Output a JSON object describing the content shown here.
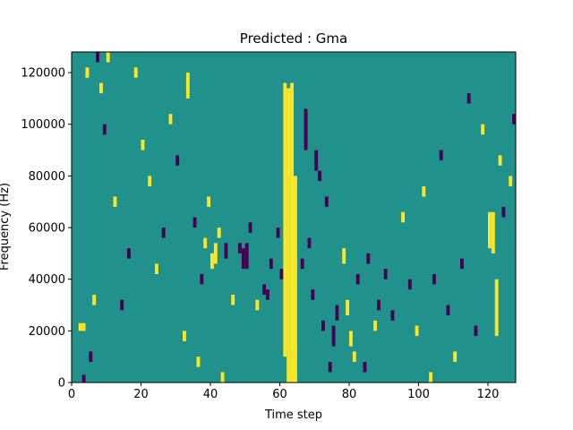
{
  "chart_data": {
    "type": "heatmap",
    "title": "Predicted : Gma",
    "xlabel": "Time step",
    "ylabel": "Frequency (Hz)",
    "xlim": [
      0,
      128
    ],
    "ylim": [
      0,
      128000
    ],
    "xticks": [
      0,
      20,
      40,
      60,
      80,
      100,
      120
    ],
    "yticks": [
      0,
      20000,
      40000,
      60000,
      80000,
      100000,
      120000
    ],
    "ytick_labels": [
      "0",
      "20000",
      "40000",
      "60000",
      "80000",
      "100000",
      "120000"
    ],
    "grid": false,
    "legend": "none",
    "n_time_steps": 128,
    "n_freq_bins": 128,
    "value_levels": [
      -1,
      0,
      1
    ],
    "colormap": {
      "-1": "#440154",
      "0": "#21918c",
      "1": "#fde725"
    },
    "background_value": 0,
    "cells": [
      {
        "t": 2,
        "f0": 20000,
        "f1": 23000,
        "v": 1
      },
      {
        "t": 3,
        "f0": 20000,
        "f1": 23000,
        "v": 1
      },
      {
        "t": 3,
        "f0": 0,
        "f1": 3000,
        "v": -1
      },
      {
        "t": 4,
        "f0": 118000,
        "f1": 122000,
        "v": 1
      },
      {
        "t": 5,
        "f0": 8000,
        "f1": 12000,
        "v": -1
      },
      {
        "t": 6,
        "f0": 30000,
        "f1": 34000,
        "v": 1
      },
      {
        "t": 7,
        "f0": 124000,
        "f1": 128000,
        "v": -1
      },
      {
        "t": 8,
        "f0": 112000,
        "f1": 116000,
        "v": 1
      },
      {
        "t": 9,
        "f0": 96000,
        "f1": 100000,
        "v": -1
      },
      {
        "t": 10,
        "f0": 124000,
        "f1": 128000,
        "v": 1
      },
      {
        "t": 12,
        "f0": 68000,
        "f1": 72000,
        "v": 1
      },
      {
        "t": 14,
        "f0": 28000,
        "f1": 32000,
        "v": -1
      },
      {
        "t": 16,
        "f0": 48000,
        "f1": 52000,
        "v": -1
      },
      {
        "t": 18,
        "f0": 118000,
        "f1": 122000,
        "v": 1
      },
      {
        "t": 20,
        "f0": 90000,
        "f1": 94000,
        "v": 1
      },
      {
        "t": 22,
        "f0": 76000,
        "f1": 80000,
        "v": 1
      },
      {
        "t": 24,
        "f0": 42000,
        "f1": 46000,
        "v": 1
      },
      {
        "t": 26,
        "f0": 56000,
        "f1": 60000,
        "v": -1
      },
      {
        "t": 28,
        "f0": 100000,
        "f1": 104000,
        "v": 1
      },
      {
        "t": 30,
        "f0": 84000,
        "f1": 88000,
        "v": -1
      },
      {
        "t": 32,
        "f0": 16000,
        "f1": 20000,
        "v": 1
      },
      {
        "t": 33,
        "f0": 110000,
        "f1": 120000,
        "v": 1
      },
      {
        "t": 35,
        "f0": 60000,
        "f1": 64000,
        "v": -1
      },
      {
        "t": 36,
        "f0": 6000,
        "f1": 10000,
        "v": 1
      },
      {
        "t": 37,
        "f0": 38000,
        "f1": 42000,
        "v": -1
      },
      {
        "t": 38,
        "f0": 52000,
        "f1": 56000,
        "v": 1
      },
      {
        "t": 39,
        "f0": 68000,
        "f1": 72000,
        "v": 1
      },
      {
        "t": 40,
        "f0": 44000,
        "f1": 50000,
        "v": 1
      },
      {
        "t": 41,
        "f0": 46000,
        "f1": 54000,
        "v": 1
      },
      {
        "t": 42,
        "f0": 56000,
        "f1": 60000,
        "v": 1
      },
      {
        "t": 43,
        "f0": 0,
        "f1": 4000,
        "v": 1
      },
      {
        "t": 44,
        "f0": 48000,
        "f1": 54000,
        "v": -1
      },
      {
        "t": 46,
        "f0": 30000,
        "f1": 34000,
        "v": 1
      },
      {
        "t": 48,
        "f0": 50000,
        "f1": 54000,
        "v": -1
      },
      {
        "t": 49,
        "f0": 44000,
        "f1": 52000,
        "v": -1
      },
      {
        "t": 50,
        "f0": 44000,
        "f1": 54000,
        "v": -1
      },
      {
        "t": 51,
        "f0": 58000,
        "f1": 62000,
        "v": -1
      },
      {
        "t": 53,
        "f0": 28000,
        "f1": 32000,
        "v": 1
      },
      {
        "t": 55,
        "f0": 34000,
        "f1": 38000,
        "v": -1
      },
      {
        "t": 56,
        "f0": 32000,
        "f1": 36000,
        "v": -1
      },
      {
        "t": 57,
        "f0": 44000,
        "f1": 48000,
        "v": -1
      },
      {
        "t": 59,
        "f0": 56000,
        "f1": 60000,
        "v": -1
      },
      {
        "t": 60,
        "f0": 40000,
        "f1": 44000,
        "v": -1
      },
      {
        "t": 61,
        "f0": 10000,
        "f1": 116000,
        "v": 1
      },
      {
        "t": 62,
        "f0": 0,
        "f1": 114000,
        "v": 1
      },
      {
        "t": 63,
        "f0": 0,
        "f1": 116000,
        "v": 1
      },
      {
        "t": 64,
        "f0": 0,
        "f1": 80000,
        "v": 1
      },
      {
        "t": 66,
        "f0": 44000,
        "f1": 48000,
        "v": -1
      },
      {
        "t": 67,
        "f0": 90000,
        "f1": 106000,
        "v": -1
      },
      {
        "t": 68,
        "f0": 52000,
        "f1": 56000,
        "v": -1
      },
      {
        "t": 69,
        "f0": 32000,
        "f1": 36000,
        "v": -1
      },
      {
        "t": 70,
        "f0": 82000,
        "f1": 90000,
        "v": -1
      },
      {
        "t": 71,
        "f0": 78000,
        "f1": 82000,
        "v": -1
      },
      {
        "t": 72,
        "f0": 20000,
        "f1": 24000,
        "v": -1
      },
      {
        "t": 73,
        "f0": 68000,
        "f1": 72000,
        "v": -1
      },
      {
        "t": 74,
        "f0": 4000,
        "f1": 8000,
        "v": -1
      },
      {
        "t": 75,
        "f0": 14000,
        "f1": 22000,
        "v": -1
      },
      {
        "t": 76,
        "f0": 24000,
        "f1": 30000,
        "v": -1
      },
      {
        "t": 78,
        "f0": 46000,
        "f1": 52000,
        "v": 1
      },
      {
        "t": 79,
        "f0": 26000,
        "f1": 32000,
        "v": 1
      },
      {
        "t": 80,
        "f0": 14000,
        "f1": 20000,
        "v": 1
      },
      {
        "t": 81,
        "f0": 8000,
        "f1": 12000,
        "v": 1
      },
      {
        "t": 82,
        "f0": 38000,
        "f1": 42000,
        "v": -1
      },
      {
        "t": 84,
        "f0": 4000,
        "f1": 8000,
        "v": -1
      },
      {
        "t": 85,
        "f0": 46000,
        "f1": 50000,
        "v": -1
      },
      {
        "t": 87,
        "f0": 20000,
        "f1": 24000,
        "v": 1
      },
      {
        "t": 88,
        "f0": 28000,
        "f1": 32000,
        "v": -1
      },
      {
        "t": 90,
        "f0": 40000,
        "f1": 44000,
        "v": -1
      },
      {
        "t": 92,
        "f0": 24000,
        "f1": 28000,
        "v": -1
      },
      {
        "t": 95,
        "f0": 62000,
        "f1": 66000,
        "v": 1
      },
      {
        "t": 97,
        "f0": 36000,
        "f1": 40000,
        "v": -1
      },
      {
        "t": 99,
        "f0": 18000,
        "f1": 22000,
        "v": 1
      },
      {
        "t": 101,
        "f0": 72000,
        "f1": 76000,
        "v": 1
      },
      {
        "t": 103,
        "f0": 0,
        "f1": 4000,
        "v": 1
      },
      {
        "t": 104,
        "f0": 38000,
        "f1": 42000,
        "v": -1
      },
      {
        "t": 106,
        "f0": 86000,
        "f1": 90000,
        "v": -1
      },
      {
        "t": 108,
        "f0": 26000,
        "f1": 30000,
        "v": -1
      },
      {
        "t": 110,
        "f0": 8000,
        "f1": 12000,
        "v": 1
      },
      {
        "t": 112,
        "f0": 44000,
        "f1": 48000,
        "v": -1
      },
      {
        "t": 114,
        "f0": 108000,
        "f1": 112000,
        "v": -1
      },
      {
        "t": 116,
        "f0": 18000,
        "f1": 22000,
        "v": -1
      },
      {
        "t": 118,
        "f0": 96000,
        "f1": 100000,
        "v": 1
      },
      {
        "t": 120,
        "f0": 52000,
        "f1": 66000,
        "v": 1
      },
      {
        "t": 121,
        "f0": 50000,
        "f1": 66000,
        "v": 1
      },
      {
        "t": 122,
        "f0": 18000,
        "f1": 40000,
        "v": 1
      },
      {
        "t": 123,
        "f0": 84000,
        "f1": 88000,
        "v": 1
      },
      {
        "t": 124,
        "f0": 64000,
        "f1": 68000,
        "v": -1
      },
      {
        "t": 126,
        "f0": 76000,
        "f1": 80000,
        "v": 1
      },
      {
        "t": 127,
        "f0": 100000,
        "f1": 104000,
        "v": -1
      }
    ]
  }
}
